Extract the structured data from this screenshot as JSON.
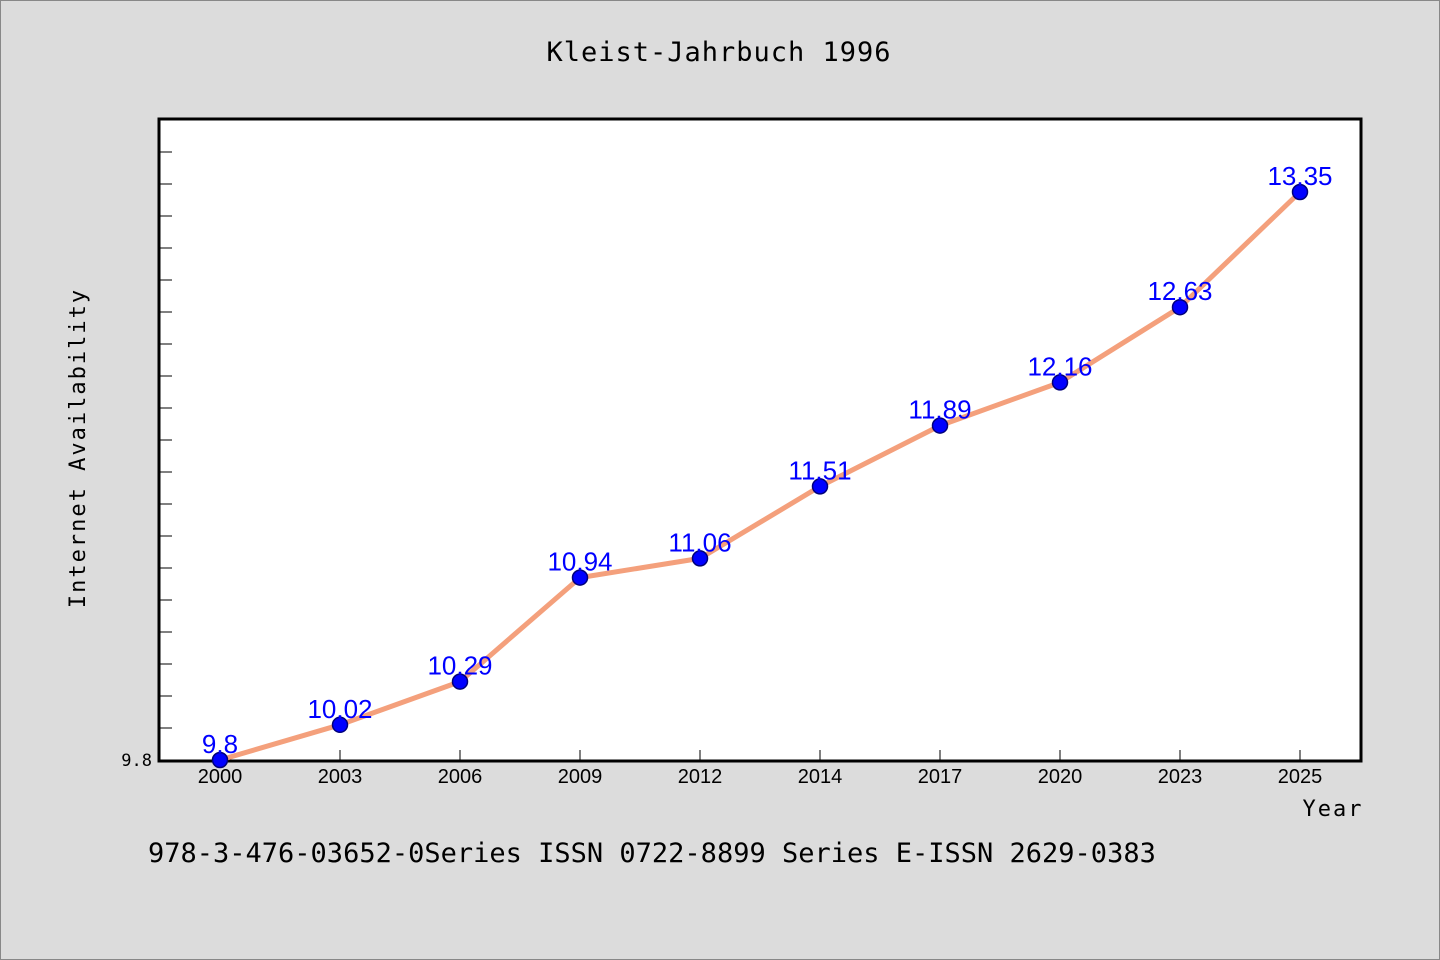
{
  "chart_data": {
    "type": "line",
    "title": "Kleist-Jahrbuch 1996",
    "xlabel": "Year",
    "ylabel": "Internet Availability",
    "categories": [
      "2000",
      "2003",
      "2006",
      "2009",
      "2012",
      "2014",
      "2017",
      "2020",
      "2023",
      "2025"
    ],
    "series": [
      {
        "values": [
          9.8,
          10.02,
          10.29,
          10.94,
          11.06,
          11.51,
          11.89,
          12.16,
          12.63,
          13.35
        ]
      }
    ],
    "data_labels": [
      "9.8",
      "10.02",
      "10.29",
      "10.94",
      "11.06",
      "11.51",
      "11.89",
      "12.16",
      "12.63",
      "13.35"
    ],
    "y_tick_labels": [
      "9.8"
    ],
    "ylim": [
      9.8,
      13.8
    ],
    "grid": false,
    "line_color": "#f4a07c",
    "marker_color": "#0000ff",
    "label_color": "#0000ff"
  },
  "footer": "978-3-476-03652-0Series ISSN 0722-8899 Series E-ISSN 2629-0383"
}
